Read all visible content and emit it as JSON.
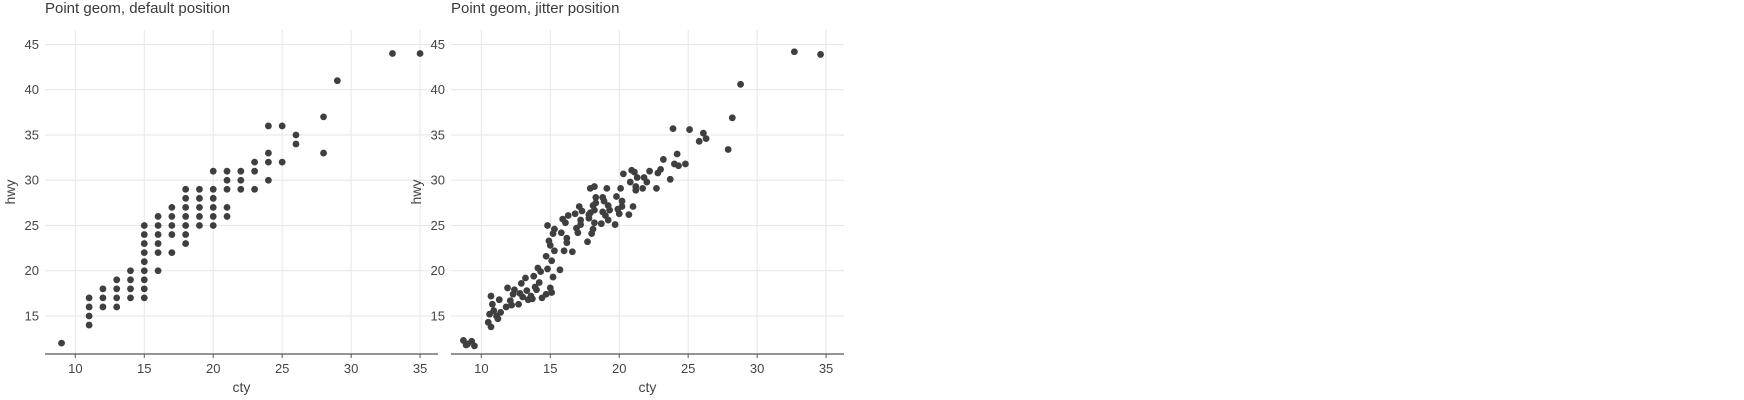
{
  "chart_data": [
    {
      "type": "scatter",
      "title": "Point geom, default position",
      "xlabel": "cty",
      "ylabel": "hwy",
      "xlim": [
        7.8,
        36.3
      ],
      "ylim": [
        10.8,
        46.6
      ],
      "xticks": [
        10,
        15,
        20,
        25,
        30,
        35
      ],
      "yticks": [
        15,
        20,
        25,
        30,
        35,
        40,
        45
      ],
      "grid": true,
      "points": [
        [
          9,
          12
        ],
        [
          11,
          14
        ],
        [
          11,
          15
        ],
        [
          11,
          16
        ],
        [
          11,
          17
        ],
        [
          12,
          16
        ],
        [
          12,
          17
        ],
        [
          12,
          18
        ],
        [
          13,
          16
        ],
        [
          13,
          17
        ],
        [
          13,
          18
        ],
        [
          13,
          19
        ],
        [
          14,
          17
        ],
        [
          14,
          18
        ],
        [
          14,
          19
        ],
        [
          14,
          20
        ],
        [
          15,
          17
        ],
        [
          15,
          18
        ],
        [
          15,
          19
        ],
        [
          15,
          20
        ],
        [
          15,
          21
        ],
        [
          15,
          22
        ],
        [
          15,
          23
        ],
        [
          15,
          24
        ],
        [
          15,
          25
        ],
        [
          16,
          20
        ],
        [
          16,
          22
        ],
        [
          16,
          23
        ],
        [
          16,
          24
        ],
        [
          16,
          25
        ],
        [
          16,
          26
        ],
        [
          17,
          22
        ],
        [
          17,
          24
        ],
        [
          17,
          25
        ],
        [
          17,
          26
        ],
        [
          17,
          27
        ],
        [
          18,
          23
        ],
        [
          18,
          24
        ],
        [
          18,
          25
        ],
        [
          18,
          26
        ],
        [
          18,
          27
        ],
        [
          18,
          28
        ],
        [
          18,
          29
        ],
        [
          19,
          25
        ],
        [
          19,
          26
        ],
        [
          19,
          27
        ],
        [
          19,
          28
        ],
        [
          19,
          29
        ],
        [
          20,
          25
        ],
        [
          20,
          26
        ],
        [
          20,
          27
        ],
        [
          20,
          28
        ],
        [
          20,
          29
        ],
        [
          20,
          31
        ],
        [
          21,
          26
        ],
        [
          21,
          27
        ],
        [
          21,
          29
        ],
        [
          21,
          30
        ],
        [
          21,
          31
        ],
        [
          22,
          29
        ],
        [
          22,
          30
        ],
        [
          22,
          31
        ],
        [
          23,
          29
        ],
        [
          23,
          31
        ],
        [
          23,
          32
        ],
        [
          24,
          30
        ],
        [
          24,
          32
        ],
        [
          24,
          33
        ],
        [
          24,
          36
        ],
        [
          25,
          32
        ],
        [
          25,
          36
        ],
        [
          26,
          34
        ],
        [
          26,
          35
        ],
        [
          28,
          33
        ],
        [
          28,
          37
        ],
        [
          29,
          41
        ],
        [
          33,
          44
        ],
        [
          35,
          44
        ]
      ]
    },
    {
      "type": "scatter",
      "title": "Point geom, jitter position",
      "xlabel": "cty",
      "ylabel": "hwy",
      "xlim": [
        7.8,
        36.3
      ],
      "ylim": [
        10.8,
        46.6
      ],
      "xticks": [
        10,
        15,
        20,
        25,
        30,
        35
      ],
      "yticks": [
        15,
        20,
        25,
        30,
        35,
        40,
        45
      ],
      "grid": true,
      "points": [
        [
          8.7,
          12.3
        ],
        [
          9.0,
          11.9
        ],
        [
          9.3,
          12.2
        ],
        [
          9.5,
          11.7
        ],
        [
          8.9,
          11.8
        ],
        [
          10.5,
          14.3
        ],
        [
          10.7,
          13.8
        ],
        [
          10.6,
          15.2
        ],
        [
          10.9,
          15.6
        ],
        [
          10.8,
          16.3
        ],
        [
          11.1,
          15.0
        ],
        [
          11.3,
          16.8
        ],
        [
          10.7,
          17.2
        ],
        [
          11.2,
          14.7
        ],
        [
          11.4,
          15.4
        ],
        [
          11.8,
          16.0
        ],
        [
          12.1,
          16.7
        ],
        [
          12.3,
          17.4
        ],
        [
          11.9,
          18.1
        ],
        [
          12.4,
          17.9
        ],
        [
          12.2,
          16.2
        ],
        [
          12.7,
          16.3
        ],
        [
          13.0,
          17.1
        ],
        [
          13.3,
          17.8
        ],
        [
          12.9,
          18.6
        ],
        [
          13.2,
          19.2
        ],
        [
          13.4,
          16.8
        ],
        [
          12.8,
          17.5
        ],
        [
          13.6,
          17.2
        ],
        [
          14.0,
          17.9
        ],
        [
          14.2,
          18.7
        ],
        [
          13.8,
          19.4
        ],
        [
          14.1,
          20.3
        ],
        [
          14.4,
          17.0
        ],
        [
          13.9,
          18.2
        ],
        [
          14.3,
          19.9
        ],
        [
          13.7,
          16.9
        ],
        [
          14.7,
          17.4
        ],
        [
          15.0,
          18.1
        ],
        [
          15.2,
          19.3
        ],
        [
          14.8,
          20.2
        ],
        [
          15.1,
          21.1
        ],
        [
          15.3,
          22.2
        ],
        [
          14.9,
          23.3
        ],
        [
          15.2,
          24.1
        ],
        [
          14.8,
          25.0
        ],
        [
          15.3,
          24.6
        ],
        [
          15.0,
          22.8
        ],
        [
          14.7,
          21.6
        ],
        [
          15.1,
          17.6
        ],
        [
          15.7,
          20.1
        ],
        [
          16.0,
          22.2
        ],
        [
          16.2,
          23.1
        ],
        [
          15.8,
          24.2
        ],
        [
          16.1,
          25.3
        ],
        [
          16.3,
          26.1
        ],
        [
          15.9,
          25.7
        ],
        [
          16.2,
          23.6
        ],
        [
          16.6,
          22.1
        ],
        [
          17.0,
          24.2
        ],
        [
          17.2,
          25.1
        ],
        [
          16.8,
          26.3
        ],
        [
          17.1,
          27.1
        ],
        [
          17.3,
          26.6
        ],
        [
          16.9,
          24.7
        ],
        [
          17.2,
          25.6
        ],
        [
          17.7,
          23.2
        ],
        [
          18.0,
          24.1
        ],
        [
          18.2,
          25.3
        ],
        [
          17.8,
          26.2
        ],
        [
          18.1,
          27.2
        ],
        [
          18.3,
          28.1
        ],
        [
          17.9,
          29.1
        ],
        [
          18.2,
          26.7
        ],
        [
          17.8,
          25.8
        ],
        [
          18.1,
          24.6
        ],
        [
          18.3,
          27.5
        ],
        [
          17.9,
          26.4
        ],
        [
          18.2,
          29.3
        ],
        [
          18.7,
          25.2
        ],
        [
          19.0,
          26.1
        ],
        [
          19.2,
          27.2
        ],
        [
          18.8,
          28.1
        ],
        [
          19.1,
          29.1
        ],
        [
          19.3,
          26.7
        ],
        [
          18.9,
          27.7
        ],
        [
          19.2,
          25.6
        ],
        [
          18.8,
          26.5
        ],
        [
          19.7,
          25.1
        ],
        [
          20.0,
          26.3
        ],
        [
          20.2,
          27.1
        ],
        [
          19.8,
          28.2
        ],
        [
          20.1,
          29.1
        ],
        [
          20.3,
          30.7
        ],
        [
          19.9,
          26.8
        ],
        [
          20.2,
          27.7
        ],
        [
          20.7,
          26.2
        ],
        [
          21.0,
          27.1
        ],
        [
          21.2,
          28.9
        ],
        [
          20.8,
          29.8
        ],
        [
          21.1,
          30.9
        ],
        [
          21.3,
          30.3
        ],
        [
          20.9,
          31.1
        ],
        [
          21.2,
          29.3
        ],
        [
          21.7,
          29.1
        ],
        [
          22.0,
          29.8
        ],
        [
          22.2,
          31.0
        ],
        [
          21.8,
          30.3
        ],
        [
          22.7,
          29.1
        ],
        [
          23.0,
          31.2
        ],
        [
          23.2,
          32.3
        ],
        [
          22.8,
          30.8
        ],
        [
          23.7,
          30.1
        ],
        [
          24.0,
          31.8
        ],
        [
          24.2,
          32.9
        ],
        [
          23.9,
          35.7
        ],
        [
          24.3,
          31.6
        ],
        [
          24.8,
          31.8
        ],
        [
          25.1,
          35.6
        ],
        [
          25.8,
          34.3
        ],
        [
          26.1,
          35.2
        ],
        [
          26.3,
          34.6
        ],
        [
          27.9,
          33.4
        ],
        [
          28.2,
          36.9
        ],
        [
          28.8,
          40.6
        ],
        [
          32.7,
          44.2
        ],
        [
          34.6,
          43.9
        ]
      ]
    }
  ]
}
